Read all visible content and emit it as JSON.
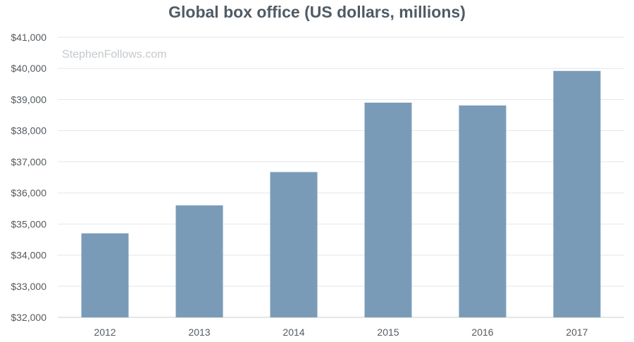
{
  "chart_data": {
    "type": "bar",
    "title": "Global box office (US dollars, millions)",
    "watermark": "StephenFollows.com",
    "categories": [
      "2012",
      "2013",
      "2014",
      "2015",
      "2016",
      "2017"
    ],
    "values": [
      34700,
      35600,
      36670,
      38900,
      38810,
      39920
    ],
    "ylim": [
      32000,
      41000
    ],
    "yticks": [
      "$32,000",
      "$33,000",
      "$34,000",
      "$35,000",
      "$36,000",
      "$37,000",
      "$38,000",
      "$39,000",
      "$40,000",
      "$41,000"
    ],
    "xlabel": "",
    "ylabel": "",
    "grid": true,
    "bar_color": "#7a9bb8",
    "grid_color": "#e4e6e8",
    "axis_color": "#c8ccd0"
  }
}
